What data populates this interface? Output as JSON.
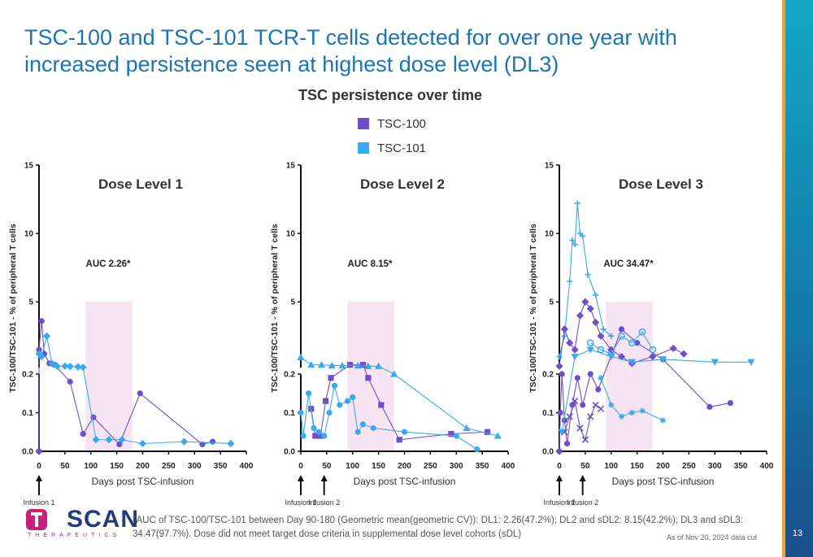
{
  "title": "TSC-100 and TSC-101 TCR-T cells detected for over one year with increased persistence seen at highest dose level (DL3)",
  "chart_heading": "TSC persistence over time",
  "legend": [
    {
      "label": "TSC-100",
      "color": "#6e4fc9"
    },
    {
      "label": "TSC-101",
      "color": "#3aa8f0"
    }
  ],
  "footnote": "*AUC of TSC-100/TSC-101 between Day 90-180 (Geometric mean(geometric CV)): DL1: 2.26(47.2%); DL2 and sDL2: 8.15(42.2%); DL3 and sDL3: 34.47(97.7%). Dose did not meet target dose criteria in supplemental dose level cohorts (sDL)",
  "data_cut": "As of Nov 20, 2024 data cut",
  "page_number": "13",
  "logo": {
    "text": "SCAN",
    "sub": "THERAPEUTICS"
  },
  "chart_data": [
    {
      "type": "scatter",
      "title": "Dose Level 1",
      "annotation": "AUC 2.26*",
      "xlabel": "Days post TSC-infusion",
      "ylabel": "TSC-100/TSC-101 - % of peripheral T cells",
      "x_ticks": [
        "0",
        "50",
        "100",
        "150",
        "200",
        "250",
        "300",
        "350",
        "400"
      ],
      "y_ticks_lower": [
        "0.0",
        "0.1",
        "0.2"
      ],
      "y_ticks_upper": [
        "5",
        "10",
        "15"
      ],
      "xlim": [
        0,
        400
      ],
      "ylim_lower": [
        0,
        0.2
      ],
      "ylim_upper": [
        0.2,
        15
      ],
      "shaded_range": [
        90,
        180
      ],
      "infusions": [
        {
          "day": 0,
          "label": "Infusion 1"
        }
      ],
      "series": [
        {
          "color": "#6e4fc9",
          "marker": "circle",
          "points": [
            [
              0,
              0
            ],
            [
              0,
              1.5
            ],
            [
              5,
              3.6
            ],
            [
              10,
              1.2
            ],
            [
              20,
              0.5
            ],
            [
              30,
              0.4
            ],
            [
              60,
              0.18
            ],
            [
              85,
              0.045
            ],
            [
              105,
              0.088
            ],
            [
              155,
              0.018
            ],
            [
              195,
              0.15
            ],
            [
              315,
              0.018
            ],
            [
              335,
              0.025
            ]
          ]
        },
        {
          "color": "#3aa8f0",
          "marker": "diamond",
          "points": [
            [
              0,
              1.2
            ],
            [
              5,
              1.0
            ],
            [
              15,
              2.5
            ],
            [
              25,
              0.5
            ],
            [
              35,
              0.3
            ],
            [
              50,
              0.3
            ],
            [
              60,
              0.28
            ],
            [
              75,
              0.25
            ],
            [
              85,
              0.22
            ],
            [
              110,
              0.03
            ],
            [
              135,
              0.03
            ],
            [
              160,
              0.03
            ],
            [
              200,
              0.02
            ],
            [
              280,
              0.025
            ],
            [
              370,
              0.02
            ]
          ]
        }
      ]
    },
    {
      "type": "scatter",
      "title": "Dose Level 2",
      "annotation": "AUC 8.15*",
      "xlabel": "Days post TSC-infusion",
      "ylabel": "TSC-100/TSC-101 - % of peripheral T cells",
      "x_ticks": [
        "0",
        "50",
        "100",
        "150",
        "200",
        "250",
        "300",
        "350",
        "400"
      ],
      "y_ticks_lower": [
        "0.0",
        "0.1",
        "0.2"
      ],
      "y_ticks_upper": [
        "5",
        "10",
        "15"
      ],
      "xlim": [
        0,
        400
      ],
      "ylim_lower": [
        0,
        0.2
      ],
      "ylim_upper": [
        0.2,
        15
      ],
      "shaded_range": [
        90,
        180
      ],
      "infusions": [
        {
          "day": 0,
          "label": "Infusion 1"
        },
        {
          "day": 45,
          "label": "Infusion 2"
        }
      ],
      "series": [
        {
          "color": "#6e4fc9",
          "marker": "square",
          "points": [
            [
              20,
              0.11
            ],
            [
              28,
              0.04
            ],
            [
              38,
              0.04
            ],
            [
              48,
              0.13
            ],
            [
              58,
              0.19
            ],
            [
              95,
              0.4
            ],
            [
              120,
              0.4
            ],
            [
              130,
              0.19
            ],
            [
              155,
              0.12
            ],
            [
              190,
              0.03
            ],
            [
              290,
              0.045
            ],
            [
              360,
              0.05
            ]
          ]
        },
        {
          "color": "#3aa8f0",
          "marker": "triangle",
          "points": [
            [
              0,
              0.95
            ],
            [
              20,
              0.4
            ],
            [
              40,
              0.4
            ],
            [
              60,
              0.35
            ],
            [
              80,
              0.35
            ],
            [
              110,
              0.35
            ],
            [
              130,
              0.3
            ],
            [
              150,
              0.3
            ],
            [
              180,
              0.2
            ],
            [
              320,
              0.06
            ],
            [
              380,
              0.04
            ]
          ]
        },
        {
          "color": "#3aa8f0",
          "marker": "circle",
          "points": [
            [
              0,
              0.1
            ],
            [
              5,
              0.04
            ],
            [
              15,
              0.15
            ],
            [
              25,
              0.06
            ],
            [
              35,
              0.05
            ],
            [
              45,
              0.04
            ],
            [
              55,
              0.1
            ],
            [
              65,
              0.17
            ],
            [
              75,
              0.12
            ],
            [
              90,
              0.13
            ],
            [
              100,
              0.14
            ],
            [
              110,
              0.05
            ],
            [
              120,
              0.07
            ],
            [
              140,
              0.06
            ],
            [
              200,
              0.05
            ],
            [
              300,
              0.04
            ],
            [
              340,
              0.005
            ]
          ]
        }
      ]
    },
    {
      "type": "scatter",
      "title": "Dose Level 3",
      "annotation": "AUC 34.47*",
      "xlabel": "Days post TSC-infusion",
      "ylabel": "TSC-100/TSC-101 - % of peripheral T cells",
      "x_ticks": [
        "0",
        "50",
        "100",
        "150",
        "200",
        "250",
        "300",
        "350",
        "400"
      ],
      "y_ticks_lower": [
        "0.0",
        "0.1",
        "0.2"
      ],
      "y_ticks_upper": [
        "5",
        "10",
        "15"
      ],
      "xlim": [
        0,
        400
      ],
      "ylim_lower": [
        0,
        0.2
      ],
      "ylim_upper": [
        0.2,
        15
      ],
      "shaded_range": [
        90,
        180
      ],
      "infusions": [
        {
          "day": 0,
          "label": "Infusion 1"
        },
        {
          "day": 45,
          "label": "Infusion 2"
        }
      ],
      "series": [
        {
          "color": "#3aa8f0",
          "marker": "plus",
          "points": [
            [
              0,
              1.0
            ],
            [
              10,
              2.5
            ],
            [
              20,
              6.5
            ],
            [
              25,
              9.5
            ],
            [
              30,
              9.2
            ],
            [
              35,
              12.2
            ],
            [
              40,
              10.0
            ],
            [
              45,
              9.8
            ],
            [
              55,
              7.0
            ],
            [
              70,
              5.5
            ],
            [
              85,
              3.0
            ],
            [
              100,
              2.5
            ]
          ]
        },
        {
          "color": "#6e4fc9",
          "marker": "diamond",
          "points": [
            [
              0,
              0.3
            ],
            [
              10,
              3.0
            ],
            [
              20,
              2.0
            ],
            [
              30,
              1.5
            ],
            [
              40,
              4.0
            ],
            [
              50,
              5.0
            ],
            [
              60,
              4.5
            ],
            [
              70,
              3.5
            ],
            [
              80,
              2.5
            ],
            [
              100,
              1.5
            ],
            [
              120,
              1.0
            ],
            [
              140,
              0.5
            ],
            [
              180,
              1.0
            ],
            [
              220,
              1.6
            ],
            [
              240,
              1.2
            ]
          ]
        },
        {
          "color": "#6e4fc9",
          "marker": "circle",
          "points": [
            [
              0,
              0.0
            ],
            [
              2,
              0.1
            ],
            [
              5,
              0.2
            ],
            [
              10,
              0.08
            ],
            [
              15,
              0.02
            ],
            [
              25,
              0.12
            ],
            [
              35,
              0.19
            ],
            [
              45,
              0.12
            ],
            [
              60,
              0.2
            ],
            [
              75,
              0.16
            ],
            [
              120,
              3.0
            ],
            [
              150,
              2.0
            ],
            [
              200,
              0.8
            ],
            [
              290,
              0.115
            ],
            [
              330,
              0.125
            ]
          ]
        },
        {
          "color": "#6e4fc9",
          "marker": "x",
          "points": [
            [
              10,
              0.05
            ],
            [
              20,
              0.09
            ],
            [
              30,
              0.13
            ],
            [
              40,
              0.06
            ],
            [
              50,
              0.03
            ],
            [
              60,
              0.09
            ],
            [
              70,
              0.12
            ],
            [
              80,
              0.11
            ]
          ]
        },
        {
          "color": "#3aa8f0",
          "marker": "triangle-down",
          "points": [
            [
              5,
              0.05
            ],
            [
              30,
              1.0
            ],
            [
              60,
              1.5
            ],
            [
              100,
              1.0
            ],
            [
              140,
              0.6
            ],
            [
              200,
              0.8
            ],
            [
              300,
              0.6
            ],
            [
              370,
              0.6
            ]
          ]
        },
        {
          "color": "#3aa8f0",
          "marker": "star",
          "points": [
            [
              80,
              0.19
            ],
            [
              100,
              0.12
            ],
            [
              120,
              0.09
            ],
            [
              140,
              0.1
            ],
            [
              160,
              0.105
            ],
            [
              200,
              0.08
            ]
          ]
        },
        {
          "color": "#3aa8f0",
          "marker": "ring",
          "points": [
            [
              60,
              2.0
            ],
            [
              80,
              1.5
            ],
            [
              100,
              1.2
            ],
            [
              120,
              2.5
            ],
            [
              140,
              2.0
            ],
            [
              160,
              2.8
            ],
            [
              180,
              1.5
            ]
          ]
        }
      ]
    }
  ]
}
